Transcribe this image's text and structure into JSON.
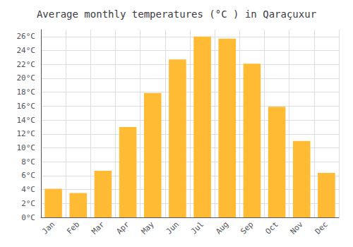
{
  "chart_data": {
    "type": "bar",
    "title": "Average monthly temperatures (°C ) in Qaraçuxur",
    "categories": [
      "Jan",
      "Feb",
      "Mar",
      "Apr",
      "May",
      "Jun",
      "Jul",
      "Aug",
      "Sep",
      "Oct",
      "Nov",
      "Dec"
    ],
    "values": [
      4.1,
      3.5,
      6.7,
      13.0,
      17.9,
      22.7,
      26.0,
      25.7,
      22.1,
      15.9,
      11.0,
      6.4
    ],
    "color": "#FFBB33",
    "ylim": [
      0,
      27
    ],
    "yticks": [
      {
        "value": 0,
        "label": "0°C"
      },
      {
        "value": 2,
        "label": "2°C"
      },
      {
        "value": 4,
        "label": "4°C"
      },
      {
        "value": 6,
        "label": "6°C"
      },
      {
        "value": 8,
        "label": "8°C"
      },
      {
        "value": 10,
        "label": "10°C"
      },
      {
        "value": 12,
        "label": "12°C"
      },
      {
        "value": 14,
        "label": "14°C"
      },
      {
        "value": 16,
        "label": "16°C"
      },
      {
        "value": 18,
        "label": "18°C"
      },
      {
        "value": 20,
        "label": "20°C"
      },
      {
        "value": 22,
        "label": "22°C"
      },
      {
        "value": 24,
        "label": "24°C"
      },
      {
        "value": 26,
        "label": "26°C"
      }
    ],
    "grid": true
  }
}
